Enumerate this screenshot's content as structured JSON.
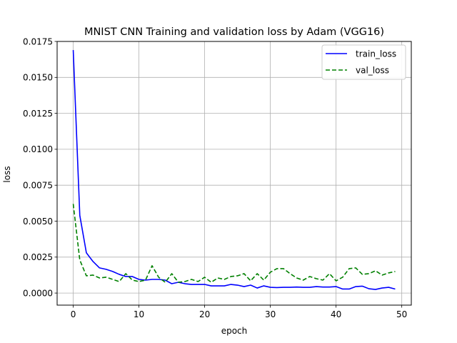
{
  "chart_data": {
    "type": "line",
    "title": "MNIST CNN Training and validation loss by Adam (VGG16)",
    "xlabel": "epoch",
    "ylabel": "loss",
    "xlim": [
      -2.45,
      51.45
    ],
    "ylim": [
      -0.00084,
      0.0175
    ],
    "xticks": [
      0,
      10,
      20,
      30,
      40,
      50
    ],
    "yticks": [
      0.0,
      0.0025,
      0.005,
      0.0075,
      0.01,
      0.0125,
      0.015,
      0.0175
    ],
    "ytick_labels": [
      "0.0000",
      "0.0025",
      "0.0050",
      "0.0075",
      "0.0100",
      "0.0125",
      "0.0150",
      "0.0175"
    ],
    "grid": true,
    "legend_position": "upper right",
    "x": [
      0,
      1,
      2,
      3,
      4,
      5,
      6,
      7,
      8,
      9,
      10,
      11,
      12,
      13,
      14,
      15,
      16,
      17,
      18,
      19,
      20,
      21,
      22,
      23,
      24,
      25,
      26,
      27,
      28,
      29,
      30,
      31,
      32,
      33,
      34,
      35,
      36,
      37,
      38,
      39,
      40,
      41,
      42,
      43,
      44,
      45,
      46,
      47,
      48,
      49
    ],
    "series": [
      {
        "name": "train_loss",
        "color": "#0000ff",
        "style": "solid",
        "values": [
          0.0169,
          0.0054,
          0.0028,
          0.0022,
          0.00175,
          0.00165,
          0.0015,
          0.0013,
          0.00115,
          0.00115,
          0.00095,
          0.0009,
          0.00095,
          0.00095,
          0.0009,
          0.00065,
          0.00075,
          0.00065,
          0.0006,
          0.0006,
          0.0006,
          0.0005,
          0.0005,
          0.0005,
          0.0006,
          0.00055,
          0.00045,
          0.00055,
          0.00035,
          0.0005,
          0.0004,
          0.00038,
          0.0004,
          0.0004,
          0.00042,
          0.0004,
          0.0004,
          0.00045,
          0.00042,
          0.00042,
          0.00045,
          0.00028,
          0.00028,
          0.00045,
          0.00048,
          0.0003,
          0.00025,
          0.00035,
          0.0004,
          0.00028
        ]
      },
      {
        "name": "val_loss",
        "color": "#008000",
        "style": "dashed",
        "values": [
          0.0062,
          0.0023,
          0.0012,
          0.00125,
          0.00105,
          0.0011,
          0.00095,
          0.0008,
          0.00135,
          0.0009,
          0.0008,
          0.0009,
          0.0019,
          0.0011,
          0.00075,
          0.00135,
          0.00075,
          0.0008,
          0.00095,
          0.0008,
          0.0011,
          0.00075,
          0.00105,
          0.00095,
          0.00115,
          0.0012,
          0.00135,
          0.00085,
          0.00135,
          0.0009,
          0.00145,
          0.0017,
          0.0017,
          0.00135,
          0.00105,
          0.0009,
          0.00115,
          0.001,
          0.0009,
          0.00135,
          0.00085,
          0.0011,
          0.0017,
          0.00175,
          0.0013,
          0.00135,
          0.00155,
          0.00125,
          0.0014,
          0.0015
        ]
      }
    ]
  }
}
